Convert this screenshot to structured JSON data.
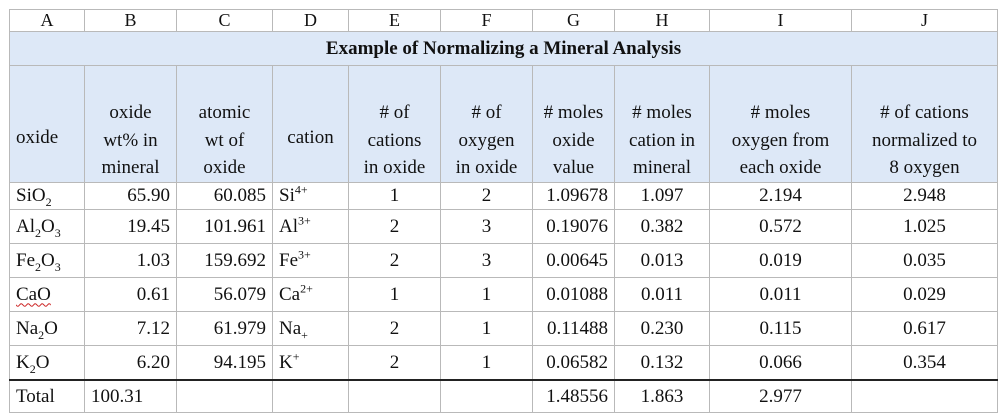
{
  "columns": [
    "A",
    "B",
    "C",
    "D",
    "E",
    "F",
    "G",
    "H",
    "I",
    "J"
  ],
  "title": "Example of Normalizing a Mineral Analysis",
  "headers": {
    "oxide": "oxide",
    "wt": [
      "oxide",
      "wt% in",
      "mineral"
    ],
    "atomic": [
      "atomic",
      "wt of",
      "oxide"
    ],
    "cation": "cation",
    "cations": [
      "# of",
      "cations",
      "in oxide"
    ],
    "oxygen": [
      "# of",
      "oxygen",
      "in oxide"
    ],
    "moles_oxide": [
      "# moles",
      "oxide",
      "value"
    ],
    "moles_cation": [
      "# moles",
      "cation in",
      "mineral"
    ],
    "moles_oxygen": [
      "# moles",
      "oxygen from",
      "each oxide"
    ],
    "normalized": [
      "# of cations",
      "normalized to",
      "8 oxygen"
    ]
  },
  "rows": [
    {
      "oxide": {
        "a": "SiO",
        "b": "2",
        "c": ""
      },
      "wt": "65.90",
      "atomic": "60.085",
      "cation": {
        "el": "Si",
        "charge": "4+"
      },
      "cations": "1",
      "oxygen": "2",
      "mol_oxide": "1.09678",
      "mol_cation": "1.097",
      "mol_oxygen": "2.194",
      "normalized": "2.948"
    },
    {
      "oxide": {
        "a": "Al",
        "b": "2",
        "c": "O",
        "d": "3"
      },
      "wt": "19.45",
      "atomic": "101.961",
      "cation": {
        "el": "Al",
        "charge": "3+"
      },
      "cations": "2",
      "oxygen": "3",
      "mol_oxide": "0.19076",
      "mol_cation": "0.382",
      "mol_oxygen": "0.572",
      "normalized": "1.025"
    },
    {
      "oxide": {
        "a": "Fe",
        "b": "2",
        "c": "O",
        "d": "3"
      },
      "wt": "1.03",
      "atomic": "159.692",
      "cation": {
        "el": "Fe",
        "charge": "3+"
      },
      "cations": "2",
      "oxygen": "3",
      "mol_oxide": "0.00645",
      "mol_cation": "0.013",
      "mol_oxygen": "0.019",
      "normalized": "0.035"
    },
    {
      "oxide": {
        "a": "CaO"
      },
      "wt": "0.61",
      "atomic": "56.079",
      "cation": {
        "el": "Ca",
        "charge": "2+"
      },
      "cations": "1",
      "oxygen": "1",
      "mol_oxide": "0.01088",
      "mol_cation": "0.011",
      "mol_oxygen": "0.011",
      "normalized": "0.029"
    },
    {
      "oxide": {
        "a": "Na",
        "b": "2",
        "c": "O"
      },
      "wt": "7.12",
      "atomic": "61.979",
      "cation": {
        "el": "Na",
        "charge": "+"
      },
      "cations": "2",
      "oxygen": "1",
      "mol_oxide": "0.11488",
      "mol_cation": "0.230",
      "mol_oxygen": "0.115",
      "normalized": "0.617"
    },
    {
      "oxide": {
        "a": "K",
        "b": "2",
        "c": "O"
      },
      "wt": "6.20",
      "atomic": "94.195",
      "cation": {
        "el": "K",
        "charge": "+"
      },
      "cations": "2",
      "oxygen": "1",
      "mol_oxide": "0.06582",
      "mol_cation": "0.132",
      "mol_oxygen": "0.066",
      "normalized": "0.354"
    }
  ],
  "total": {
    "label": "Total",
    "wt": "100.31",
    "mol_oxide": "1.48556",
    "mol_cation": "1.863",
    "mol_oxygen": "2.977"
  },
  "colors": {
    "header_bg": "#dde8f7",
    "grid": "#b9b9b9",
    "spell_underline": "#cc2222"
  }
}
